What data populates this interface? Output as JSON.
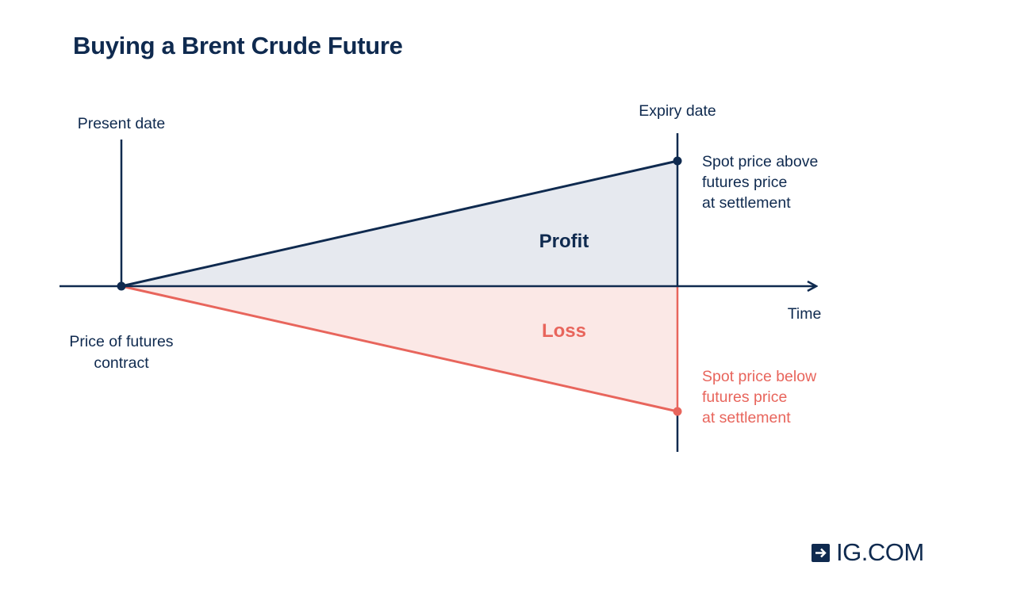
{
  "title": "Buying a Brent Crude Future",
  "labels": {
    "present_date": "Present date",
    "expiry_date": "Expiry date",
    "time_axis": "Time",
    "futures_price_line1": "Price of futures",
    "futures_price_line2": "contract",
    "above_line1": "Spot price above",
    "above_line2": "futures price",
    "above_line3": "at settlement",
    "below_line1": "Spot price below",
    "below_line2": "futures price",
    "below_line3": "at settlement",
    "profit": "Profit",
    "loss": "Loss"
  },
  "colors": {
    "navy": "#0f2a4f",
    "loss_red": "#e8655c",
    "profit_fill": "#e6e9ef",
    "loss_fill": "#fbe8e6"
  },
  "logo": {
    "icon": "arrow-right-icon",
    "text": "IG.COM"
  }
}
